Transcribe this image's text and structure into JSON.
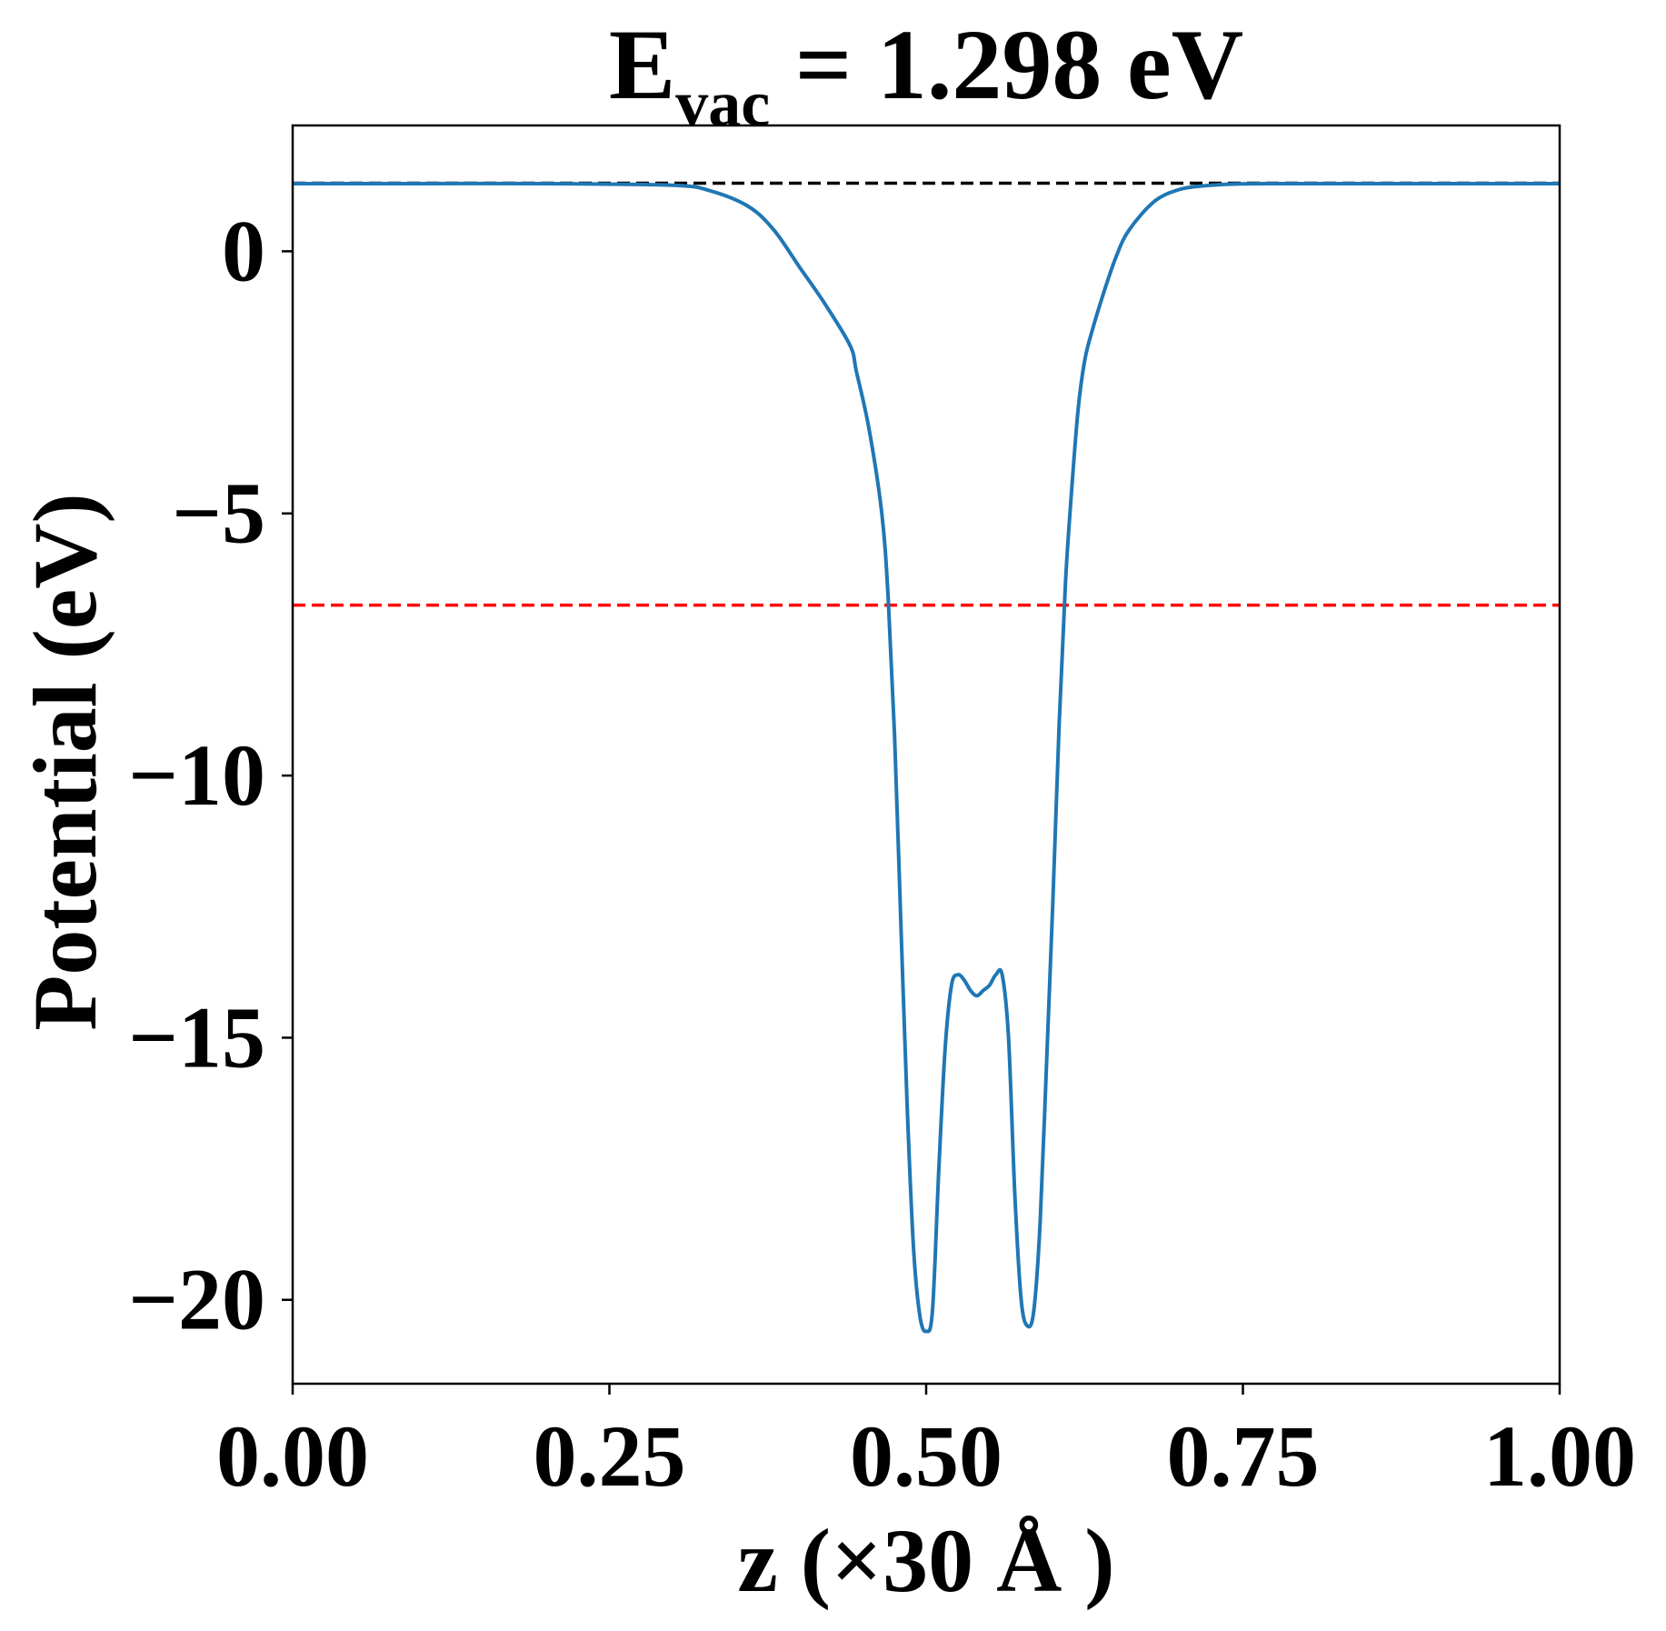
{
  "chart_data": {
    "type": "line",
    "title": {
      "main": "E",
      "subscript": "vac",
      "rest": " = 1.298 eV"
    },
    "xlabel": "z (×30 Å )",
    "ylabel": "Potential (eV)",
    "xlim": [
      0.0,
      1.0
    ],
    "ylim": [
      -21.6,
      2.4
    ],
    "x_ticks": [
      0.0,
      0.25,
      0.5,
      0.75,
      1.0
    ],
    "x_tick_labels": [
      "0.00",
      "0.25",
      "0.50",
      "0.75",
      "1.00"
    ],
    "y_ticks": [
      0,
      -5,
      -10,
      -15,
      -20
    ],
    "y_tick_labels": [
      "0",
      "−5",
      "−10",
      "−15",
      "−20"
    ],
    "grid": false,
    "legend": "none",
    "series": [
      {
        "color": "#1f77b4",
        "style": "solid",
        "x": [
          0.0,
          0.1,
          0.2,
          0.3,
          0.33,
          0.36,
          0.38,
          0.4,
          0.42,
          0.44,
          0.445,
          0.455,
          0.465,
          0.47,
          0.475,
          0.48,
          0.485,
          0.49,
          0.495,
          0.5,
          0.505,
          0.51,
          0.515,
          0.52,
          0.525,
          0.53,
          0.535,
          0.54,
          0.545,
          0.55,
          0.555,
          0.56,
          0.565,
          0.57,
          0.575,
          0.58,
          0.585,
          0.59,
          0.595,
          0.6,
          0.605,
          0.61,
          0.615,
          0.62,
          0.625,
          0.63,
          0.64,
          0.65,
          0.66,
          0.68,
          0.7,
          0.72,
          0.74,
          0.77,
          0.8,
          0.9,
          1.0
        ],
        "y": [
          1.29,
          1.29,
          1.29,
          1.26,
          1.15,
          0.85,
          0.4,
          -0.3,
          -1.0,
          -1.8,
          -2.3,
          -3.4,
          -5.0,
          -6.6,
          -9.2,
          -12.8,
          -16.3,
          -19.0,
          -20.3,
          -20.6,
          -20.2,
          -17.5,
          -15.2,
          -14.0,
          -13.8,
          -13.9,
          -14.1,
          -14.2,
          -14.1,
          -14.0,
          -13.8,
          -13.8,
          -15.0,
          -18.0,
          -20.0,
          -20.5,
          -20.2,
          -18.5,
          -15.5,
          -12.4,
          -9.0,
          -6.3,
          -4.5,
          -3.0,
          -2.1,
          -1.6,
          -0.8,
          -0.1,
          0.4,
          0.95,
          1.18,
          1.25,
          1.28,
          1.29,
          1.29,
          1.29,
          1.29
        ]
      }
    ],
    "reference_lines": [
      {
        "y": 1.298,
        "color": "#000000",
        "style": "dashed"
      },
      {
        "y": -6.75,
        "color": "#ff0000",
        "style": "dashed"
      }
    ]
  }
}
